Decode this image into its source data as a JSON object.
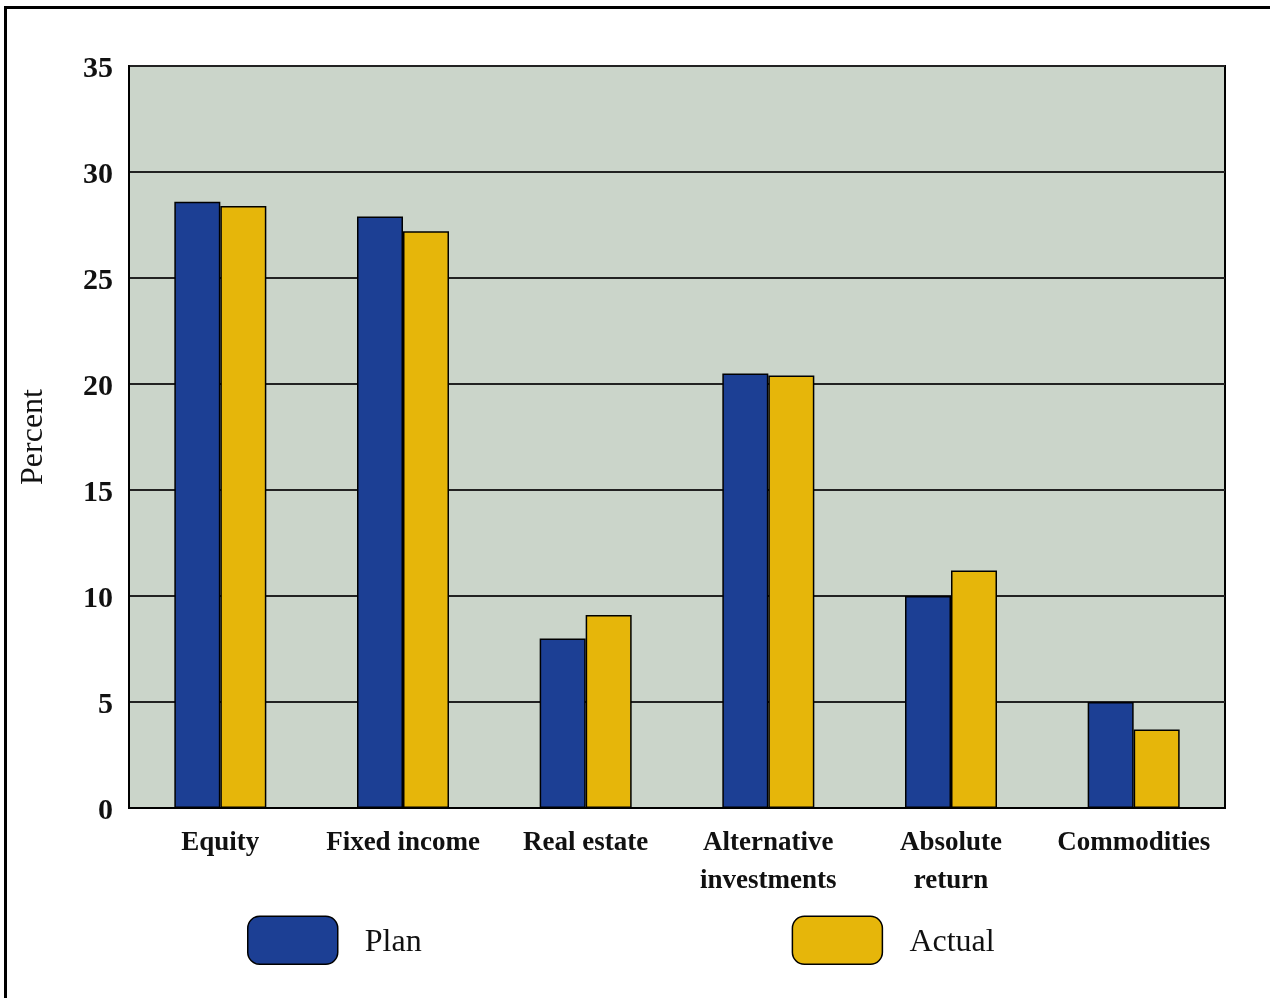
{
  "chart_data": {
    "type": "bar",
    "ylabel": "Percent",
    "categories": [
      "Equity",
      "Fixed income",
      "Real estate",
      "Alternative\ninvestments",
      "Absolute\nreturn",
      "Commodities"
    ],
    "series": [
      {
        "name": "Plan",
        "color": "#1c3f94",
        "values": [
          28.6,
          27.9,
          8.0,
          20.5,
          10.0,
          5.0
        ]
      },
      {
        "name": "Actual",
        "color": "#e6b60a",
        "values": [
          28.4,
          27.2,
          9.1,
          20.4,
          11.2,
          3.7
        ]
      }
    ],
    "ylim": [
      0,
      35
    ],
    "yticks": [
      0,
      5,
      10,
      15,
      20,
      25,
      30,
      35
    ],
    "grid": "y",
    "legend": "bottom"
  }
}
